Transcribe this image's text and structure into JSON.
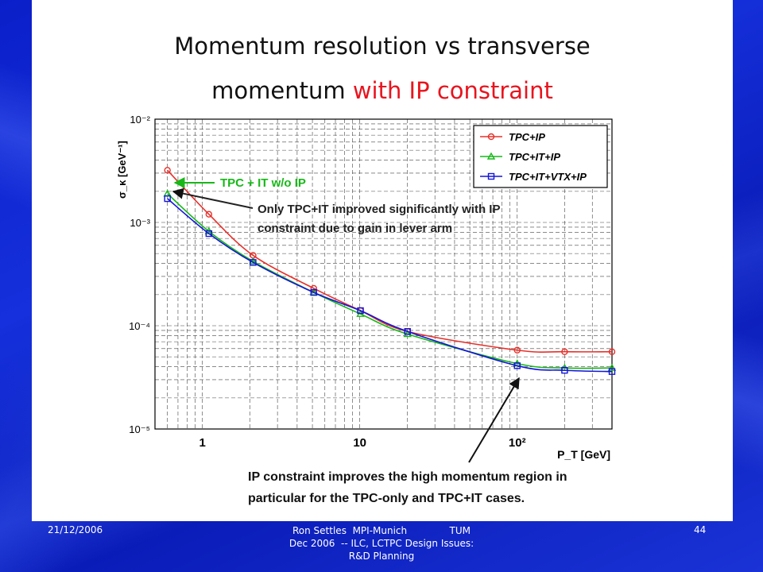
{
  "slide": {
    "title_line1": "Momentum resolution vs transverse",
    "title_line2_black": "momentum",
    "title_line2_red": "with IP constraint",
    "footer_date": "21/12/2006",
    "footer_center_line1": "Ron Settles  MPI-Munich              TUM",
    "footer_center_line2": "Dec 2006  -- ILC, LCTPC Design Issues:",
    "footer_center_line3": "R&D Planning",
    "footer_page": "44"
  },
  "chart_data": {
    "type": "line",
    "title": "",
    "xlabel": "P_T [GeV]",
    "ylabel": "σ_κ [GeV⁻¹]",
    "x_scale": "log",
    "y_scale": "log",
    "xlim": [
      0.5,
      400
    ],
    "ylim": [
      1e-05,
      0.01
    ],
    "grid": true,
    "legend_position": "top-right",
    "x_tick_labels": [
      "1",
      "10",
      "10²"
    ],
    "y_tick_labels": [
      "10⁻⁵",
      "10⁻⁴",
      "10⁻³",
      "10⁻²"
    ],
    "series": [
      {
        "name": "TPC+IP",
        "color": "#e8302a",
        "marker": "circle",
        "x": [
          0.6,
          1.1,
          2.1,
          5.1,
          10.1,
          20.1,
          100,
          200,
          400
        ],
        "y": [
          0.0032,
          0.0012,
          0.00048,
          0.00023,
          0.00014,
          8.8e-05,
          5.8e-05,
          5.6e-05,
          5.6e-05
        ]
      },
      {
        "name": "TPC+IT+IP",
        "color": "#17b818",
        "marker": "triangle",
        "x": [
          0.6,
          1.1,
          2.1,
          5.1,
          10.1,
          20.1,
          100,
          200,
          400
        ],
        "y": [
          0.0019,
          0.00082,
          0.00042,
          0.00021,
          0.00013,
          8.3e-05,
          4.3e-05,
          3.9e-05,
          3.9e-05
        ]
      },
      {
        "name": "TPC+IT+VTX+IP",
        "color": "#1414d8",
        "marker": "square",
        "x": [
          0.6,
          1.1,
          2.1,
          5.1,
          10.1,
          20.1,
          100,
          200,
          400
        ],
        "y": [
          0.0017,
          0.00078,
          0.00041,
          0.00021,
          0.00014,
          8.8e-05,
          4.1e-05,
          3.7e-05,
          3.6e-05
        ]
      }
    ],
    "annotations": [
      {
        "text": "TPC + IT w/o IP",
        "color": "#17b818"
      },
      {
        "text_line1": "Only TPC+IT improved significantly with IP",
        "text_line2": "constraint due to gain in lever arm",
        "color": "#222222"
      },
      {
        "text_line1": "IP constraint improves the high momentum region in",
        "text_line2": "particular for the TPC-only and TPC+IT cases.",
        "color": "#111111"
      }
    ]
  }
}
